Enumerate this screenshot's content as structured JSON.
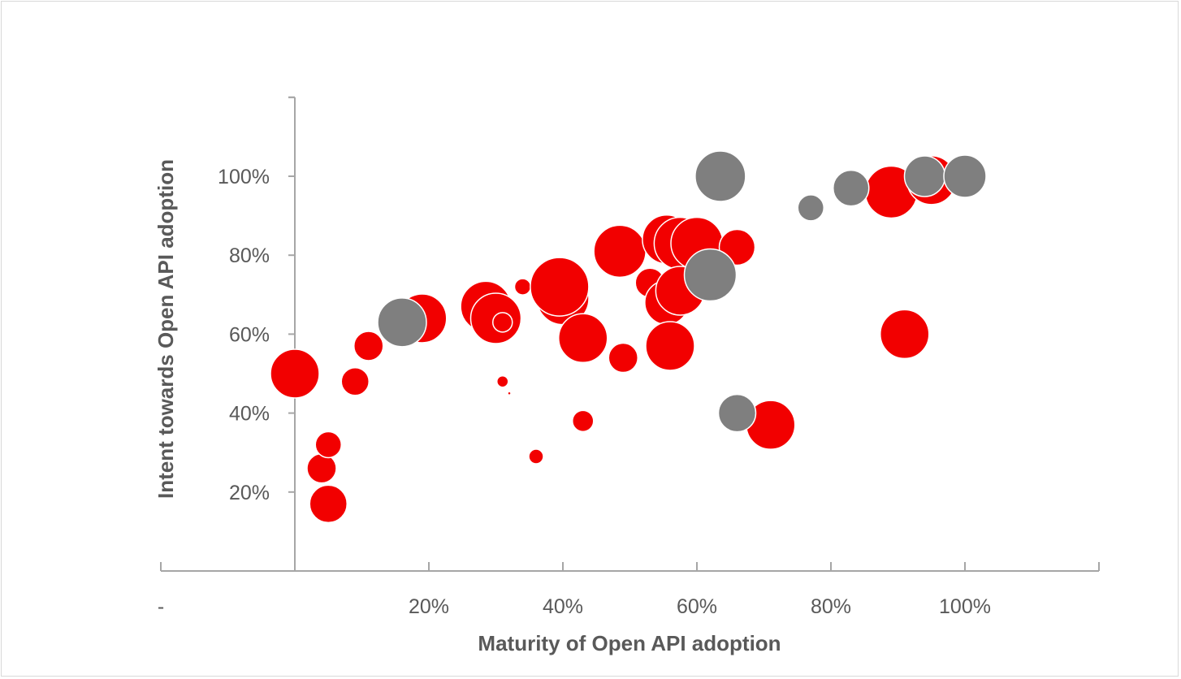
{
  "chart_data": {
    "type": "scatter",
    "title": "",
    "xlabel": "Maturity of Open API adoption",
    "ylabel": "Intent towards Open API adoption",
    "xlim": [
      -0.2,
      1.2
    ],
    "ylim": [
      -0.02,
      1.2
    ],
    "x_ticks": [
      {
        "value": -0.2,
        "label": "-"
      },
      {
        "value": 0.2,
        "label": "20%"
      },
      {
        "value": 0.4,
        "label": "40%"
      },
      {
        "value": 0.6,
        "label": "60%"
      },
      {
        "value": 0.8,
        "label": "80%"
      },
      {
        "value": 1.0,
        "label": "100%"
      }
    ],
    "y_ticks": [
      {
        "value": 0.2,
        "label": "20%"
      },
      {
        "value": 0.4,
        "label": "40%"
      },
      {
        "value": 0.6,
        "label": "60%"
      },
      {
        "value": 0.8,
        "label": "80%"
      },
      {
        "value": 1.0,
        "label": "100%"
      }
    ],
    "grid": false,
    "legend": "none",
    "colors": {
      "red": "#f20000",
      "grey": "#7f7f7f",
      "axis": "#a6a6a6",
      "text": "#595959"
    },
    "series": [
      {
        "color": "#f20000",
        "points": [
          {
            "x": 0.0,
            "y": 0.5,
            "size": 30
          },
          {
            "x": 0.04,
            "y": 0.26,
            "size": 18
          },
          {
            "x": 0.05,
            "y": 0.32,
            "size": 16
          },
          {
            "x": 0.05,
            "y": 0.17,
            "size": 23
          },
          {
            "x": 0.09,
            "y": 0.48,
            "size": 17
          },
          {
            "x": 0.11,
            "y": 0.57,
            "size": 18
          },
          {
            "x": 0.19,
            "y": 0.64,
            "size": 30
          },
          {
            "x": 0.285,
            "y": 0.67,
            "size": 31
          },
          {
            "x": 0.3,
            "y": 0.64,
            "size": 31
          },
          {
            "x": 0.31,
            "y": 0.63,
            "size": 12
          },
          {
            "x": 0.31,
            "y": 0.48,
            "size": 7
          },
          {
            "x": 0.32,
            "y": 0.45,
            "size": 2
          },
          {
            "x": 0.34,
            "y": 0.72,
            "size": 10
          },
          {
            "x": 0.36,
            "y": 0.29,
            "size": 9
          },
          {
            "x": 0.4,
            "y": 0.69,
            "size": 32
          },
          {
            "x": 0.395,
            "y": 0.72,
            "size": 36
          },
          {
            "x": 0.43,
            "y": 0.59,
            "size": 30
          },
          {
            "x": 0.43,
            "y": 0.38,
            "size": 13
          },
          {
            "x": 0.485,
            "y": 0.81,
            "size": 32
          },
          {
            "x": 0.49,
            "y": 0.54,
            "size": 18
          },
          {
            "x": 0.53,
            "y": 0.73,
            "size": 18
          },
          {
            "x": 0.555,
            "y": 0.68,
            "size": 27
          },
          {
            "x": 0.56,
            "y": 0.57,
            "size": 30
          },
          {
            "x": 0.555,
            "y": 0.84,
            "size": 30
          },
          {
            "x": 0.575,
            "y": 0.83,
            "size": 32
          },
          {
            "x": 0.575,
            "y": 0.71,
            "size": 30
          },
          {
            "x": 0.6,
            "y": 0.83,
            "size": 32
          },
          {
            "x": 0.66,
            "y": 0.82,
            "size": 22
          },
          {
            "x": 0.71,
            "y": 0.37,
            "size": 30
          },
          {
            "x": 0.89,
            "y": 0.96,
            "size": 32
          },
          {
            "x": 0.91,
            "y": 0.6,
            "size": 30
          },
          {
            "x": 0.95,
            "y": 0.99,
            "size": 30
          }
        ]
      },
      {
        "color": "#7f7f7f",
        "points": [
          {
            "x": 0.16,
            "y": 0.63,
            "size": 30
          },
          {
            "x": 0.62,
            "y": 0.75,
            "size": 32
          },
          {
            "x": 0.635,
            "y": 1.0,
            "size": 31
          },
          {
            "x": 0.66,
            "y": 0.4,
            "size": 23
          },
          {
            "x": 0.77,
            "y": 0.92,
            "size": 16
          },
          {
            "x": 0.83,
            "y": 0.97,
            "size": 22
          },
          {
            "x": 0.94,
            "y": 1.0,
            "size": 25
          },
          {
            "x": 1.0,
            "y": 1.0,
            "size": 26
          }
        ]
      }
    ]
  }
}
